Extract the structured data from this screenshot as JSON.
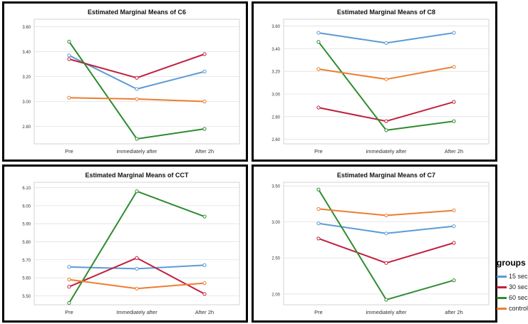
{
  "legend": {
    "title": "groups",
    "items": [
      {
        "label": "15 sec",
        "color": "#5b9bd5"
      },
      {
        "label": "30 sec",
        "color": "#c0203e"
      },
      {
        "label": "60 sec",
        "color": "#2e8b2e"
      },
      {
        "label": "control",
        "color": "#ed7d31"
      }
    ]
  },
  "chart_data": [
    {
      "type": "line",
      "title": "Estimated Marginal Means of C6",
      "categories": [
        "Pre",
        "immediately after",
        "After 2h"
      ],
      "ylim": [
        2.66,
        3.66
      ],
      "yticks": [
        2.8,
        3.0,
        3.2,
        3.4,
        3.6
      ],
      "ytick_labels": [
        "2.80",
        "3.00",
        "3.20",
        "3.40",
        "3.60"
      ],
      "grid": true,
      "series": [
        {
          "name": "15 sec",
          "values": [
            3.37,
            3.1,
            3.24
          ]
        },
        {
          "name": "30 sec",
          "values": [
            3.34,
            3.19,
            3.38
          ]
        },
        {
          "name": "60 sec",
          "values": [
            3.48,
            2.7,
            2.78
          ]
        },
        {
          "name": "control",
          "values": [
            3.03,
            3.02,
            3.0
          ]
        }
      ]
    },
    {
      "type": "line",
      "title": "Estimated Marginal Means of C8",
      "categories": [
        "Pre",
        "immediately after",
        "After 2h"
      ],
      "ylim": [
        2.56,
        3.66
      ],
      "yticks": [
        2.6,
        2.8,
        3.0,
        3.2,
        3.4,
        3.6
      ],
      "ytick_labels": [
        "2.60",
        "2.80",
        "3.00",
        "3.20",
        "3.40",
        "3.60"
      ],
      "grid": true,
      "series": [
        {
          "name": "15 sec",
          "values": [
            3.54,
            3.45,
            3.54
          ]
        },
        {
          "name": "30 sec",
          "values": [
            2.88,
            2.76,
            2.93
          ]
        },
        {
          "name": "60 sec",
          "values": [
            3.46,
            2.68,
            2.76
          ]
        },
        {
          "name": "control",
          "values": [
            3.22,
            3.13,
            3.24
          ]
        }
      ]
    },
    {
      "type": "line",
      "title": "Estimated Marginal Means of CCT",
      "categories": [
        "Pre",
        "Immediately after",
        "After 2h"
      ],
      "ylim": [
        5.45,
        6.13
      ],
      "yticks": [
        5.5,
        5.6,
        5.7,
        5.8,
        5.9,
        6.0,
        6.1
      ],
      "ytick_labels": [
        "5.50",
        "5.60",
        "5.70",
        "5.80",
        "5.90",
        "6.00",
        "6.10"
      ],
      "grid": true,
      "series": [
        {
          "name": "15 sec",
          "values": [
            5.66,
            5.65,
            5.67
          ]
        },
        {
          "name": "30 sec",
          "values": [
            5.55,
            5.71,
            5.51
          ]
        },
        {
          "name": "60 sec",
          "values": [
            5.46,
            6.08,
            5.94
          ]
        },
        {
          "name": "control",
          "values": [
            5.59,
            5.54,
            5.57
          ]
        }
      ]
    },
    {
      "type": "line",
      "title": "Estimated Marginal Means of C7",
      "categories": [
        "Pre",
        "immediately after",
        "after 2h"
      ],
      "ylim": [
        1.85,
        3.55
      ],
      "yticks": [
        2.0,
        2.5,
        3.0,
        3.5
      ],
      "ytick_labels": [
        "2.00",
        "2.50",
        "3.00",
        "3.50"
      ],
      "grid": true,
      "series": [
        {
          "name": "15 sec",
          "values": [
            2.98,
            2.84,
            2.94
          ]
        },
        {
          "name": "30 sec",
          "values": [
            2.77,
            2.43,
            2.71
          ]
        },
        {
          "name": "60 sec",
          "values": [
            3.45,
            1.92,
            2.19
          ]
        },
        {
          "name": "control",
          "values": [
            3.18,
            3.09,
            3.16
          ]
        }
      ]
    }
  ]
}
